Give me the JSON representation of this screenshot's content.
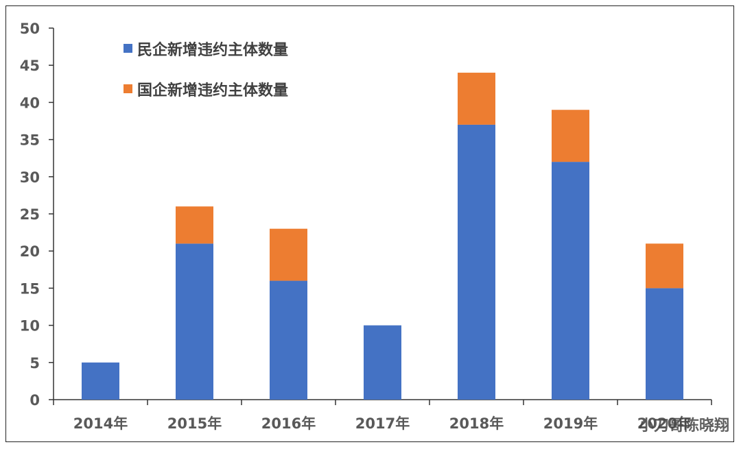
{
  "chart_data": {
    "type": "bar",
    "stacked": true,
    "categories": [
      "2014年",
      "2015年",
      "2016年",
      "2017年",
      "2018年",
      "2019年",
      "2020年"
    ],
    "series": [
      {
        "name": "民企新增违约主体数量",
        "values": [
          5,
          21,
          16,
          10,
          37,
          32,
          15
        ],
        "color": "#4472C4"
      },
      {
        "name": "国企新增违约主体数量",
        "values": [
          0,
          5,
          7,
          0,
          7,
          7,
          6
        ],
        "color": "#ED7D31"
      }
    ],
    "title": "",
    "xlabel": "",
    "ylabel": "",
    "ylim": [
      0,
      50
    ],
    "yticks": [
      0,
      5,
      10,
      15,
      20,
      25,
      30,
      35,
      40,
      45,
      50
    ],
    "grid": false,
    "legend_position": "top-left"
  },
  "watermark": "小刀哥陈晓翔"
}
